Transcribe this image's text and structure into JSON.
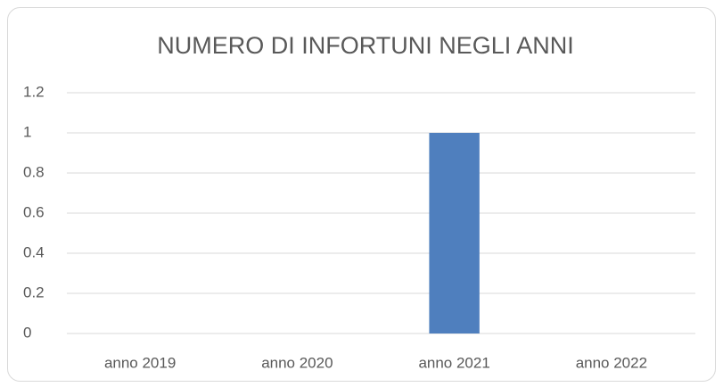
{
  "chart_data": {
    "type": "bar",
    "title": "NUMERO DI INFORTUNI NEGLI ANNI",
    "categories": [
      "anno 2019",
      "anno 2020",
      "anno 2021",
      "anno 2022"
    ],
    "values": [
      0,
      0,
      1,
      0
    ],
    "color": "#4f7fbe",
    "ylim": [
      0,
      1.2
    ],
    "yticks": [
      0,
      0.2,
      0.4,
      0.6,
      0.8,
      1,
      1.2
    ],
    "grid": true
  }
}
